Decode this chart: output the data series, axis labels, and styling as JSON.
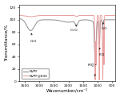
{
  "xlabel": "Wavenumber/cm⁻¹",
  "ylabel": "Transmittance/%",
  "xlim": [
    3700,
    400
  ],
  "ylim": [
    0,
    125
  ],
  "yticks": [
    0,
    20,
    40,
    60,
    80,
    100,
    120
  ],
  "xticks": [
    3500,
    3000,
    2500,
    2000,
    1500,
    1000,
    500
  ],
  "legend": [
    "NVPF",
    "NVPF@600"
  ],
  "line_colors_nvpf": "#8c8c8c",
  "line_colors_nvpf600": "#e8a0a0",
  "background_color": "#ffffff"
}
